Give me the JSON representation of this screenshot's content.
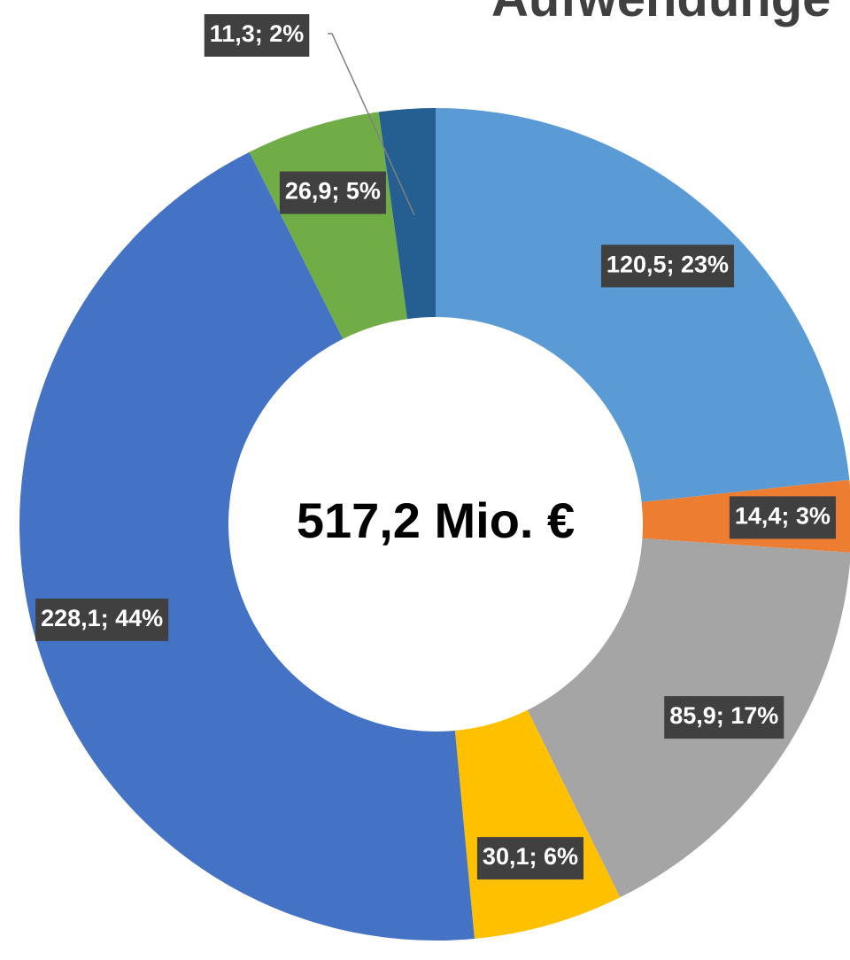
{
  "chart_data": {
    "type": "donut",
    "title": "Aufwendunge",
    "center_label": "517,2 Mio. €",
    "values": [
      120.5,
      14.4,
      85.9,
      30.1,
      228.1,
      26.9,
      11.3
    ],
    "value_labels": [
      "120,5; 23%",
      "14,4; 3%",
      "85,9; 17%",
      "30,1; 6%",
      "228,1; 44%",
      "26,9; 5%",
      "11,3; 2%"
    ],
    "colors": [
      "#5b9bd5",
      "#ed7d31",
      "#a5a5a5",
      "#ffc000",
      "#4472c4",
      "#70ad47",
      "#255e91"
    ]
  }
}
